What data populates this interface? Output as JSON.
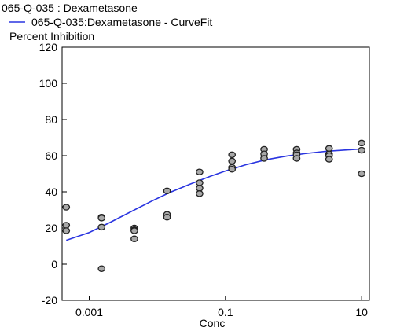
{
  "chart_data": {
    "type": "scatter",
    "legend": {
      "placement": "top-left",
      "data_entry": "065-Q-035  : Dexametasone",
      "fit_entry": "065-Q-035:Dexametasone - CurveFit"
    },
    "ylabel": "Percent Inhibition",
    "xlabel": "Conc",
    "x_scale": "log",
    "xlim": [
      0.0004,
      13
    ],
    "ylim": [
      -20,
      120
    ],
    "x_ticks": [
      0.001,
      0.1,
      10
    ],
    "x_tick_labels": [
      "0.001",
      "0.1",
      "10"
    ],
    "y_ticks": [
      -20,
      0,
      20,
      40,
      60,
      80,
      100,
      120
    ],
    "y_tick_labels": [
      "-20",
      "0",
      "20",
      "40",
      "60",
      "80",
      "100",
      "120"
    ],
    "grid": false,
    "colors": {
      "fit_line": "#2a35e0",
      "marker_fill": "#a8a8a8",
      "marker_edge": "#222222"
    },
    "series": [
      {
        "kind": "points",
        "points": [
          {
            "x": 0.00046,
            "y": 31.5
          },
          {
            "x": 0.00046,
            "y": 21.5
          },
          {
            "x": 0.00046,
            "y": 18.5
          },
          {
            "x": 0.00152,
            "y": 26.0
          },
          {
            "x": 0.00152,
            "y": 25.5
          },
          {
            "x": 0.00152,
            "y": 20.5
          },
          {
            "x": 0.00152,
            "y": -2.5
          },
          {
            "x": 0.0046,
            "y": 20.0
          },
          {
            "x": 0.0046,
            "y": 19.0
          },
          {
            "x": 0.0046,
            "y": 18.5
          },
          {
            "x": 0.0046,
            "y": 14.0
          },
          {
            "x": 0.0139,
            "y": 40.5
          },
          {
            "x": 0.0139,
            "y": 27.5
          },
          {
            "x": 0.0139,
            "y": 26.0
          },
          {
            "x": 0.0417,
            "y": 51.0
          },
          {
            "x": 0.0417,
            "y": 45.0
          },
          {
            "x": 0.0417,
            "y": 42.0
          },
          {
            "x": 0.0417,
            "y": 39.0
          },
          {
            "x": 0.125,
            "y": 60.5
          },
          {
            "x": 0.125,
            "y": 57.0
          },
          {
            "x": 0.125,
            "y": 53.5
          },
          {
            "x": 0.125,
            "y": 52.5
          },
          {
            "x": 0.37,
            "y": 63.5
          },
          {
            "x": 0.37,
            "y": 61.0
          },
          {
            "x": 0.37,
            "y": 58.5
          },
          {
            "x": 1.11,
            "y": 63.5
          },
          {
            "x": 1.11,
            "y": 61.5
          },
          {
            "x": 1.11,
            "y": 60.5
          },
          {
            "x": 1.11,
            "y": 58.5
          },
          {
            "x": 3.33,
            "y": 64.0
          },
          {
            "x": 3.33,
            "y": 61.0
          },
          {
            "x": 3.33,
            "y": 60.0
          },
          {
            "x": 3.33,
            "y": 58.0
          },
          {
            "x": 10.0,
            "y": 67.0
          },
          {
            "x": 10.0,
            "y": 63.0
          },
          {
            "x": 10.0,
            "y": 50.0
          }
        ]
      },
      {
        "kind": "curve",
        "points": [
          {
            "x": 0.00046,
            "y": 13.2
          },
          {
            "x": 0.001,
            "y": 17.5
          },
          {
            "x": 0.002,
            "y": 23.0
          },
          {
            "x": 0.004,
            "y": 28.8
          },
          {
            "x": 0.008,
            "y": 34.6
          },
          {
            "x": 0.015,
            "y": 39.5
          },
          {
            "x": 0.03,
            "y": 44.2
          },
          {
            "x": 0.06,
            "y": 48.6
          },
          {
            "x": 0.1,
            "y": 51.5
          },
          {
            "x": 0.2,
            "y": 55.0
          },
          {
            "x": 0.4,
            "y": 57.8
          },
          {
            "x": 0.8,
            "y": 59.8
          },
          {
            "x": 1.5,
            "y": 61.2
          },
          {
            "x": 3.0,
            "y": 62.4
          },
          {
            "x": 6.0,
            "y": 63.2
          },
          {
            "x": 10.0,
            "y": 63.7
          }
        ]
      }
    ]
  }
}
